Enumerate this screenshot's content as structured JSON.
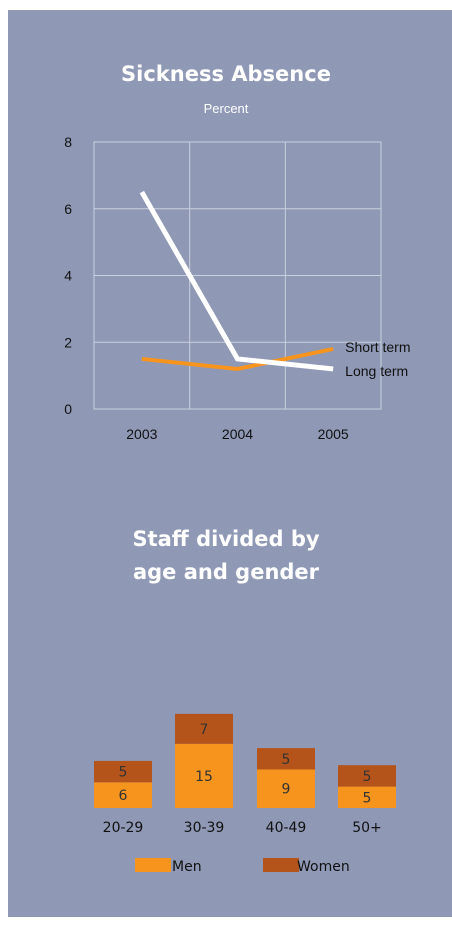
{
  "colors": {
    "panel": "#8f99b5",
    "long_term": "#ffffff",
    "short_term": "#f7941d",
    "men": "#f7941d",
    "women": "#b5541a",
    "grid": "#c9cfdf"
  },
  "chart_data": [
    {
      "type": "line",
      "title": "Sickness Absence",
      "subtitle": "Percent",
      "x": [
        "2003",
        "2004",
        "2005"
      ],
      "ylim": [
        0,
        8
      ],
      "yticks": [
        "0",
        "2",
        "4",
        "6",
        "8"
      ],
      "grid": true,
      "series": [
        {
          "name": "Short term",
          "values": [
            1.5,
            1.2,
            1.8
          ],
          "color": "#f7941d"
        },
        {
          "name": "Long term",
          "values": [
            6.5,
            1.5,
            1.2
          ],
          "color": "#ffffff"
        }
      ]
    },
    {
      "type": "bar",
      "stacked": true,
      "title_lines": [
        "Staff divided by",
        "age and gender"
      ],
      "categories": [
        "20-29",
        "30-39",
        "40-49",
        "50+"
      ],
      "series": [
        {
          "name": "Men",
          "values": [
            6,
            15,
            9,
            5
          ],
          "color": "#f7941d"
        },
        {
          "name": "Women",
          "values": [
            5,
            7,
            5,
            5
          ],
          "color": "#b5541a"
        }
      ],
      "legend": "bottom"
    }
  ]
}
